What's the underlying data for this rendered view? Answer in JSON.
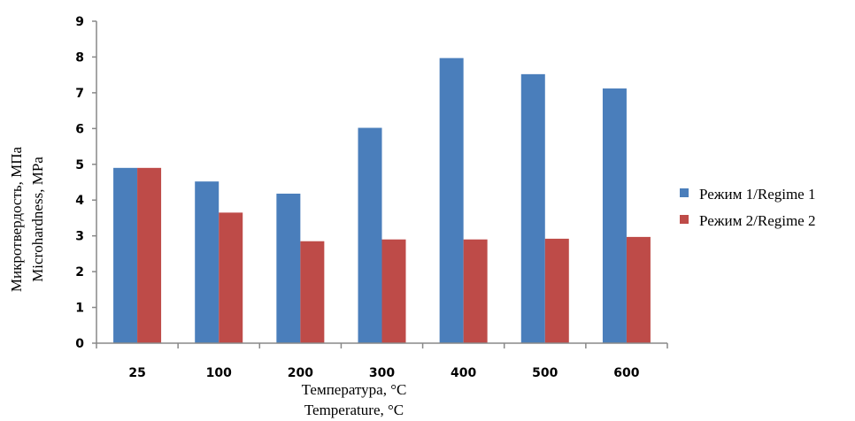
{
  "chart_data": {
    "type": "bar",
    "categories": [
      "25",
      "100",
      "200",
      "300",
      "400",
      "500",
      "600"
    ],
    "series": [
      {
        "name": "Режим 1/Regime 1",
        "color": "#4a7ebb",
        "values": [
          4.9,
          4.52,
          4.18,
          6.02,
          7.97,
          7.52,
          7.12
        ]
      },
      {
        "name": "Режим 2/Regime 2",
        "color": "#be4b48",
        "values": [
          4.9,
          3.65,
          2.85,
          2.9,
          2.9,
          2.92,
          2.97
        ]
      }
    ],
    "ylim": [
      0,
      9
    ],
    "yticks": [
      "0",
      "1",
      "2",
      "3",
      "4",
      "5",
      "6",
      "7",
      "8",
      "9"
    ],
    "ylabel": [
      "Микротвердость, МПа",
      "Microhardness, MPa"
    ],
    "xlabel": [
      "Температура, °C",
      "Temperature, °C"
    ],
    "grid": false,
    "legend_position": "right"
  }
}
